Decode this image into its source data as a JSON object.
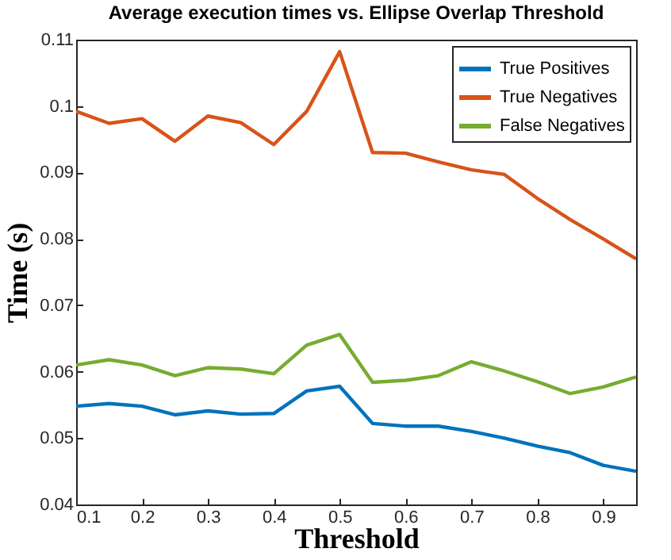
{
  "chart_data": {
    "type": "line",
    "title": "Average execution times vs. Ellipse Overlap Threshold",
    "xlabel": "Threshold",
    "ylabel": "Time (s)",
    "x": [
      0.1,
      0.15,
      0.2,
      0.25,
      0.3,
      0.35,
      0.4,
      0.45,
      0.5,
      0.55,
      0.6,
      0.65,
      0.7,
      0.75,
      0.8,
      0.85,
      0.9,
      0.95
    ],
    "series": [
      {
        "name": "True Positives",
        "color": "#0072bd",
        "values": [
          0.0548,
          0.0552,
          0.0548,
          0.0535,
          0.0541,
          0.0536,
          0.0537,
          0.0571,
          0.0578,
          0.0522,
          0.0518,
          0.0518,
          0.051,
          0.05,
          0.0488,
          0.0478,
          0.0459,
          0.045
        ]
      },
      {
        "name": "True Negatives",
        "color": "#d95319",
        "values": [
          0.0992,
          0.0974,
          0.0981,
          0.0947,
          0.0985,
          0.0975,
          0.0942,
          0.0992,
          0.1082,
          0.093,
          0.0929,
          0.0916,
          0.0904,
          0.0897,
          0.0861,
          0.0829,
          0.08,
          0.077
        ]
      },
      {
        "name": "False Negatives",
        "color": "#77ac30",
        "values": [
          0.061,
          0.0618,
          0.061,
          0.0594,
          0.0606,
          0.0604,
          0.0597,
          0.064,
          0.0656,
          0.0584,
          0.0587,
          0.0594,
          0.0615,
          0.0601,
          0.0585,
          0.0567,
          0.0577,
          0.0592
        ]
      }
    ],
    "xlim": [
      0.1,
      0.95
    ],
    "xticks": [
      0.1,
      0.2,
      0.3,
      0.4,
      0.5,
      0.6,
      0.7,
      0.8,
      0.9
    ],
    "ylim": [
      0.04,
      0.11
    ],
    "yticks": [
      0.04,
      0.05,
      0.06,
      0.07,
      0.08,
      0.09,
      0.1,
      0.11
    ],
    "legend": "top right",
    "grid": false,
    "marker": "none",
    "line_style": "solid"
  }
}
